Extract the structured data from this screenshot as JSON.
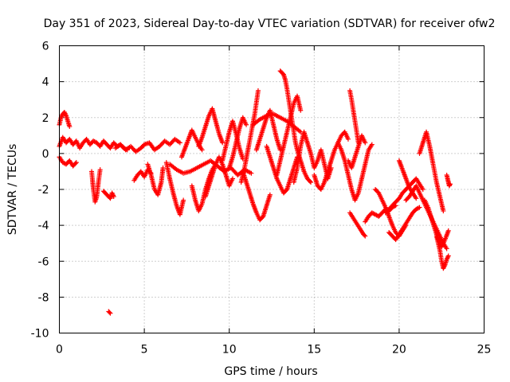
{
  "chart_data": {
    "type": "scatter",
    "title": "Day 351 of 2023, Sidereal Day-to-day VTEC variation (SDTVAR) for receiver ofw2",
    "xlabel": "GPS time / hours",
    "ylabel": "SDTVAR / TECUs",
    "xlim": [
      0,
      25
    ],
    "ylim": [
      -10,
      6
    ],
    "xticks": [
      0,
      5,
      10,
      15,
      20,
      25
    ],
    "yticks": [
      -10,
      -8,
      -6,
      -4,
      -2,
      0,
      2,
      4,
      6
    ],
    "grid": true,
    "marker": "+",
    "color": "#ff0000",
    "series": [
      {
        "name": "t0",
        "x": [
          0.0,
          0.1,
          0.2,
          0.3,
          0.4,
          0.5,
          0.6
        ],
        "y": [
          1.6,
          2.0,
          2.2,
          2.3,
          2.1,
          1.8,
          1.5
        ]
      },
      {
        "name": "t1",
        "x": [
          0.0,
          0.2,
          0.4,
          0.6,
          0.8,
          1.0,
          1.2,
          1.4,
          1.6,
          1.8,
          2.0,
          2.2,
          2.4,
          2.6,
          2.8,
          3.0,
          3.2,
          3.4,
          3.6,
          3.8,
          4.0
        ],
        "y": [
          0.4,
          0.9,
          0.6,
          0.8,
          0.5,
          0.7,
          0.3,
          0.6,
          0.8,
          0.5,
          0.7,
          0.6,
          0.4,
          0.7,
          0.5,
          0.3,
          0.6,
          0.4,
          0.5,
          0.3,
          0.2
        ]
      },
      {
        "name": "t2",
        "x": [
          0.0,
          0.2,
          0.4,
          0.6,
          0.8,
          1.0
        ],
        "y": [
          -0.2,
          -0.5,
          -0.6,
          -0.4,
          -0.7,
          -0.5
        ]
      },
      {
        "name": "t3",
        "x": [
          1.9,
          2.0,
          2.1,
          2.2,
          2.3,
          2.4
        ],
        "y": [
          -1.0,
          -2.0,
          -2.7,
          -2.4,
          -1.6,
          -0.9
        ]
      },
      {
        "name": "t4",
        "x": [
          2.6,
          2.8,
          3.0,
          3.1,
          3.2
        ],
        "y": [
          -2.1,
          -2.3,
          -2.5,
          -2.2,
          -2.4
        ]
      },
      {
        "name": "t5",
        "x": [
          2.9,
          3.0
        ],
        "y": [
          -8.8,
          -8.9
        ]
      },
      {
        "name": "t6",
        "x": [
          3.3,
          3.6,
          3.9,
          4.2,
          4.5,
          4.8,
          5.0,
          5.3,
          5.6,
          5.9,
          6.2,
          6.5,
          6.8,
          7.1
        ],
        "y": [
          0.3,
          0.5,
          0.2,
          0.4,
          0.1,
          0.3,
          0.5,
          0.6,
          0.2,
          0.4,
          0.7,
          0.5,
          0.8,
          0.6
        ]
      },
      {
        "name": "t7",
        "x": [
          4.4,
          4.6,
          4.8,
          5.0,
          5.2,
          5.4
        ],
        "y": [
          -1.5,
          -1.2,
          -1.0,
          -1.3,
          -0.9,
          -1.1
        ]
      },
      {
        "name": "t8",
        "x": [
          5.2,
          5.4,
          5.6,
          5.8,
          6.0,
          6.1
        ],
        "y": [
          -0.6,
          -1.2,
          -2.0,
          -2.3,
          -1.6,
          -0.8
        ]
      },
      {
        "name": "t9",
        "x": [
          6.3,
          6.5,
          6.7,
          6.9,
          7.1,
          7.3
        ],
        "y": [
          -0.5,
          -1.4,
          -2.2,
          -2.9,
          -3.4,
          -2.6
        ]
      },
      {
        "name": "t10",
        "x": [
          6.5,
          6.9,
          7.3,
          7.7,
          8.1,
          8.5,
          8.9,
          9.3,
          9.7,
          10.1,
          10.5,
          10.9,
          11.3
        ],
        "y": [
          -0.6,
          -0.9,
          -1.1,
          -1.0,
          -0.8,
          -0.6,
          -0.4,
          -0.7,
          -1.0,
          -0.8,
          -1.2,
          -0.9,
          -1.1
        ]
      },
      {
        "name": "t11",
        "x": [
          7.2,
          7.4,
          7.6,
          7.8,
          8.0,
          8.2,
          8.4
        ],
        "y": [
          -0.2,
          0.3,
          0.8,
          1.3,
          0.9,
          0.5,
          0.2
        ]
      },
      {
        "name": "t12",
        "x": [
          7.8,
          8.0,
          8.2,
          8.4,
          8.6,
          8.8,
          9.0,
          9.2
        ],
        "y": [
          -1.8,
          -2.6,
          -3.2,
          -2.8,
          -2.0,
          -1.4,
          -0.9,
          -0.6
        ]
      },
      {
        "name": "t13",
        "x": [
          8.2,
          8.4,
          8.6,
          8.8,
          9.0,
          9.2,
          9.4,
          9.6
        ],
        "y": [
          0.4,
          0.9,
          1.5,
          2.1,
          2.5,
          1.8,
          1.1,
          0.6
        ]
      },
      {
        "name": "t14",
        "x": [
          8.6,
          8.8,
          9.0,
          9.2,
          9.4,
          9.6,
          9.8,
          10.0,
          10.2
        ],
        "y": [
          -2.4,
          -1.8,
          -1.2,
          -0.6,
          -0.2,
          -0.6,
          -1.2,
          -1.8,
          -1.4
        ]
      },
      {
        "name": "t15",
        "x": [
          9.6,
          9.8,
          10.0,
          10.2,
          10.4,
          10.6,
          10.8
        ],
        "y": [
          -0.4,
          0.4,
          1.2,
          1.8,
          1.1,
          0.3,
          -0.3
        ]
      },
      {
        "name": "t16",
        "x": [
          10.0,
          10.2,
          10.4,
          10.6,
          10.8,
          11.0
        ],
        "y": [
          -0.8,
          -0.2,
          0.6,
          1.4,
          2.0,
          1.6
        ]
      },
      {
        "name": "t17",
        "x": [
          10.7,
          10.9,
          11.1,
          11.3,
          11.5,
          11.7
        ],
        "y": [
          -1.6,
          -0.8,
          0.2,
          1.2,
          2.2,
          3.5
        ]
      },
      {
        "name": "t18",
        "x": [
          10.8,
          11.0,
          11.2,
          11.4,
          11.6,
          11.8,
          12.0,
          12.2,
          12.4
        ],
        "y": [
          -1.0,
          -1.6,
          -2.2,
          -2.8,
          -3.3,
          -3.7,
          -3.5,
          -2.9,
          -2.3
        ]
      },
      {
        "name": "t19",
        "x": [
          11.4,
          11.8,
          12.2,
          12.6,
          13.0,
          13.4,
          13.8,
          14.2
        ],
        "y": [
          1.6,
          1.9,
          2.1,
          2.2,
          2.0,
          1.8,
          1.5,
          1.2
        ]
      },
      {
        "name": "t20",
        "x": [
          11.6,
          11.8,
          12.0,
          12.2,
          12.4,
          12.6,
          12.8,
          13.0
        ],
        "y": [
          0.2,
          0.8,
          1.4,
          2.0,
          2.4,
          1.6,
          0.8,
          0.2
        ]
      },
      {
        "name": "t21",
        "x": [
          12.2,
          12.4,
          12.6,
          12.8,
          13.0,
          13.2,
          13.4,
          13.6,
          13.8,
          14.0
        ],
        "y": [
          0.4,
          -0.2,
          -0.8,
          -1.4,
          -1.8,
          -2.2,
          -2.0,
          -1.4,
          -0.8,
          -0.2
        ]
      },
      {
        "name": "t22",
        "x": [
          12.8,
          13.0,
          13.2,
          13.4,
          13.6,
          13.8,
          14.0,
          14.2
        ],
        "y": [
          -1.2,
          -0.4,
          0.4,
          1.2,
          2.0,
          2.8,
          3.2,
          2.4
        ]
      },
      {
        "name": "t23",
        "x": [
          13.0,
          13.2,
          13.3,
          13.4,
          13.5,
          13.6,
          13.7,
          13.8,
          13.9,
          14.0,
          14.2,
          14.4,
          14.6,
          14.8
        ],
        "y": [
          4.6,
          4.4,
          4.1,
          3.6,
          3.0,
          2.4,
          1.8,
          1.2,
          0.6,
          0.2,
          -0.4,
          -1.0,
          -1.4,
          -1.6
        ]
      },
      {
        "name": "t24",
        "x": [
          13.8,
          14.0,
          14.2,
          14.4,
          14.6,
          14.8,
          15.0,
          15.2,
          15.4,
          15.6,
          15.8,
          16.0
        ],
        "y": [
          -1.6,
          -0.8,
          0.4,
          1.2,
          0.6,
          0.0,
          -0.8,
          -0.4,
          0.2,
          -0.6,
          -1.4,
          -0.8
        ]
      },
      {
        "name": "t25",
        "x": [
          15.0,
          15.2,
          15.4,
          15.6,
          15.8,
          16.0,
          16.2,
          16.4,
          16.6,
          16.8,
          17.0
        ],
        "y": [
          -1.2,
          -1.8,
          -2.0,
          -1.6,
          -1.0,
          -0.4,
          0.2,
          0.6,
          1.0,
          1.2,
          0.8
        ]
      },
      {
        "name": "t26",
        "x": [
          16.4,
          16.6,
          16.8,
          17.0,
          17.2,
          17.4,
          17.6,
          17.8,
          18.0,
          18.2,
          18.4
        ],
        "y": [
          0.6,
          0.2,
          -0.4,
          -1.2,
          -2.0,
          -2.6,
          -2.2,
          -1.4,
          -0.6,
          0.2,
          0.5
        ]
      },
      {
        "name": "t27",
        "x": [
          17.1,
          17.2,
          17.3,
          17.4,
          17.5,
          17.6
        ],
        "y": [
          3.5,
          3.0,
          2.4,
          1.8,
          1.2,
          0.6
        ]
      },
      {
        "name": "t28",
        "x": [
          17.0,
          17.2,
          17.4,
          17.6,
          17.8,
          18.0
        ],
        "y": [
          -0.4,
          -0.8,
          -0.2,
          0.4,
          1.0,
          0.6
        ]
      },
      {
        "name": "t29",
        "x": [
          17.1,
          17.3,
          17.5,
          17.7,
          17.9,
          18.0
        ],
        "y": [
          -3.3,
          -3.6,
          -3.9,
          -4.2,
          -4.5,
          -4.6
        ]
      },
      {
        "name": "t30",
        "x": [
          18.0,
          18.2,
          18.4,
          18.6,
          18.8,
          19.0,
          19.2,
          19.4,
          19.6,
          19.8
        ],
        "y": [
          -3.8,
          -3.5,
          -3.3,
          -3.4,
          -3.5,
          -3.3,
          -3.1,
          -3.2,
          -3.0,
          -2.9
        ]
      },
      {
        "name": "t31",
        "x": [
          18.6,
          18.8,
          19.0,
          19.2,
          19.4,
          19.6,
          19.8,
          20.0,
          20.2,
          20.4
        ],
        "y": [
          -2.0,
          -2.2,
          -2.6,
          -3.0,
          -3.5,
          -4.0,
          -4.4,
          -4.6,
          -4.3,
          -4.0
        ]
      },
      {
        "name": "t32",
        "x": [
          19.2,
          19.4,
          19.6,
          19.8,
          20.0,
          20.2,
          20.4,
          20.6,
          20.8,
          21.0,
          21.2,
          21.4
        ],
        "y": [
          -3.3,
          -3.1,
          -2.9,
          -2.7,
          -2.5,
          -2.2,
          -2.0,
          -1.8,
          -1.6,
          -1.4,
          -1.7,
          -2.0
        ]
      },
      {
        "name": "t33",
        "x": [
          19.4,
          19.6,
          19.8,
          20.0,
          20.2,
          20.4,
          20.6,
          20.8,
          21.0,
          21.2
        ],
        "y": [
          -4.4,
          -4.6,
          -4.8,
          -4.5,
          -4.2,
          -3.9,
          -3.6,
          -3.3,
          -3.1,
          -3.0
        ]
      },
      {
        "name": "t34",
        "x": [
          20.0,
          20.2,
          20.4,
          20.6,
          20.8,
          21.0
        ],
        "y": [
          -0.4,
          -0.9,
          -1.4,
          -1.9,
          -2.2,
          -2.5
        ]
      },
      {
        "name": "t35",
        "x": [
          20.4,
          20.6,
          20.8,
          21.0,
          21.2,
          21.4,
          21.6,
          21.8,
          22.0,
          22.2,
          22.4,
          22.6,
          22.8
        ],
        "y": [
          -2.6,
          -2.4,
          -2.1,
          -1.8,
          -2.2,
          -2.6,
          -3.0,
          -3.4,
          -3.8,
          -4.2,
          -4.6,
          -5.0,
          -5.3
        ]
      },
      {
        "name": "t36",
        "x": [
          21.2,
          21.4,
          21.6,
          21.8,
          22.0,
          22.2,
          22.4,
          22.6
        ],
        "y": [
          0.0,
          0.6,
          1.2,
          0.4,
          -0.6,
          -1.6,
          -2.4,
          -3.2
        ]
      },
      {
        "name": "t37",
        "x": [
          21.5,
          21.7,
          21.9,
          22.1,
          22.3,
          22.5,
          22.7,
          22.9
        ],
        "y": [
          -2.6,
          -3.0,
          -3.6,
          -4.2,
          -4.8,
          -5.2,
          -4.8,
          -4.3
        ]
      },
      {
        "name": "t38",
        "x": [
          22.2,
          22.4,
          22.5,
          22.6,
          22.7,
          22.8,
          22.9
        ],
        "y": [
          -4.6,
          -5.4,
          -6.0,
          -6.4,
          -6.2,
          -5.9,
          -5.7
        ]
      },
      {
        "name": "t39",
        "x": [
          22.8,
          22.85,
          22.9,
          22.95,
          23.0
        ],
        "y": [
          -1.2,
          -1.4,
          -1.6,
          -1.8,
          -1.7
        ]
      }
    ]
  }
}
